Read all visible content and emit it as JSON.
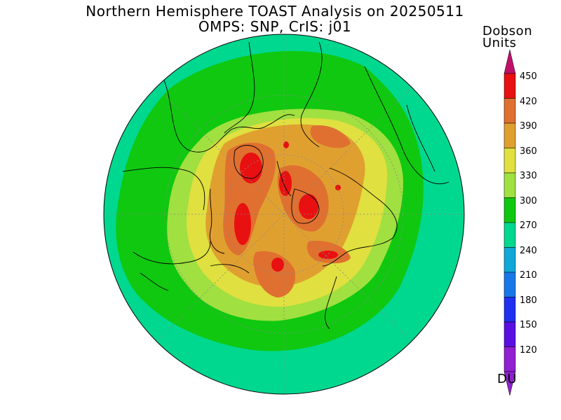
{
  "title": {
    "line1": "Northern Hemisphere TOAST Analysis on 20250511",
    "line2": "OMPS: SNP, CrIS: j01"
  },
  "colorbar": {
    "units_line1": "Dobson",
    "units_line2": "Units",
    "footer_label": "DU",
    "ticks": [
      "120",
      "150",
      "180",
      "210",
      "240",
      "270",
      "300",
      "330",
      "360",
      "390",
      "420",
      "450"
    ],
    "colors": [
      "#9020d0",
      "#5a10e0",
      "#2030f0",
      "#1878e8",
      "#10a8d8",
      "#00d890",
      "#10c810",
      "#a0e040",
      "#e0e040",
      "#e0a030",
      "#e07030",
      "#e81010"
    ],
    "top_color": "#c0106c"
  },
  "map_colors": {
    "ring": "#00d890",
    "outer": "#10c810",
    "mid": "#a0e040",
    "inner": "#e0e040",
    "high": "#e0a030",
    "higher": "#e07030",
    "peak": "#e81010"
  }
}
